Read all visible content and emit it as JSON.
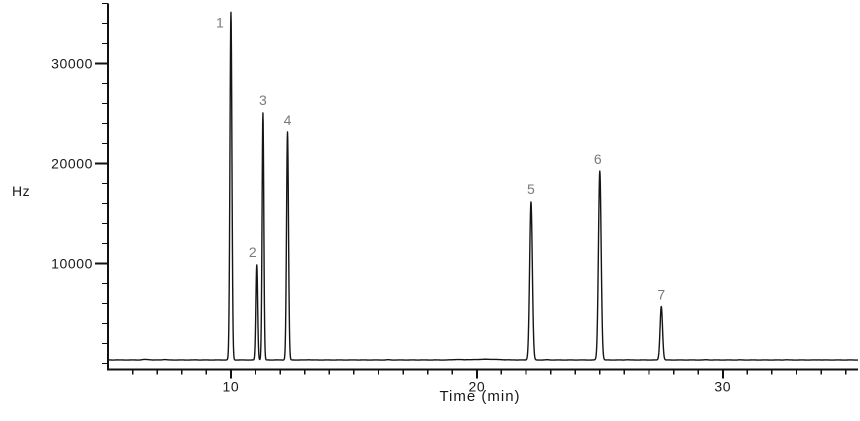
{
  "chart_data": {
    "type": "line",
    "title": "",
    "xlabel": "Time (min)",
    "ylabel": "Hz",
    "xlim": [
      5,
      35.5
    ],
    "ylim": [
      -600,
      36000
    ],
    "x_major_ticks": [
      10,
      20,
      30
    ],
    "x_major_tick_labels": [
      "10",
      "20",
      "30"
    ],
    "x_minor_tick_interval": 1,
    "x_minor_tick_start": 6,
    "x_minor_tick_end": 35,
    "y_major_ticks": [
      10000,
      20000,
      30000
    ],
    "y_major_tick_labels": [
      "10000",
      "20000",
      "30000"
    ],
    "y_minor_tick_interval": 2000,
    "y_minor_tick_start": 0,
    "y_minor_tick_end": 36000,
    "grid": "off",
    "legend": "none",
    "baseline_hz": 350,
    "noise_hz": 30,
    "peaks": [
      {
        "label": "1",
        "time_min": 10.0,
        "apex_hz": 35100,
        "sigma_min": 0.04,
        "label_dx": -11,
        "label_dy": 15
      },
      {
        "label": "2",
        "time_min": 11.05,
        "apex_hz": 9850,
        "sigma_min": 0.035,
        "label_dx": -4,
        "label_dy": -8
      },
      {
        "label": "3",
        "time_min": 11.3,
        "apex_hz": 25050,
        "sigma_min": 0.035,
        "label_dx": 0,
        "label_dy": -8
      },
      {
        "label": "4",
        "time_min": 12.3,
        "apex_hz": 23150,
        "sigma_min": 0.04,
        "label_dx": 0,
        "label_dy": -7
      },
      {
        "label": "5",
        "time_min": 22.2,
        "apex_hz": 16150,
        "sigma_min": 0.055,
        "label_dx": 0,
        "label_dy": -8
      },
      {
        "label": "6",
        "time_min": 25.0,
        "apex_hz": 19250,
        "sigma_min": 0.055,
        "label_dx": -2,
        "label_dy": -7
      },
      {
        "label": "7",
        "time_min": 27.5,
        "apex_hz": 5700,
        "sigma_min": 0.05,
        "label_dx": 0,
        "label_dy": -7
      }
    ],
    "minor_baseline_bumps": [
      {
        "time_min": 6.5,
        "height_hz": 55,
        "sigma_min": 0.1
      },
      {
        "time_min": 7.3,
        "height_hz": 45,
        "sigma_min": 0.08
      },
      {
        "time_min": 19.2,
        "height_hz": 45,
        "sigma_min": 0.18
      },
      {
        "time_min": 20.4,
        "height_hz": 70,
        "sigma_min": 0.45
      }
    ],
    "colors": {
      "background": "#ffffff",
      "trace": "#151515",
      "axis": "#111111",
      "tick_label": "#1a1a1a",
      "peak_label": "#7a7a7a"
    }
  }
}
